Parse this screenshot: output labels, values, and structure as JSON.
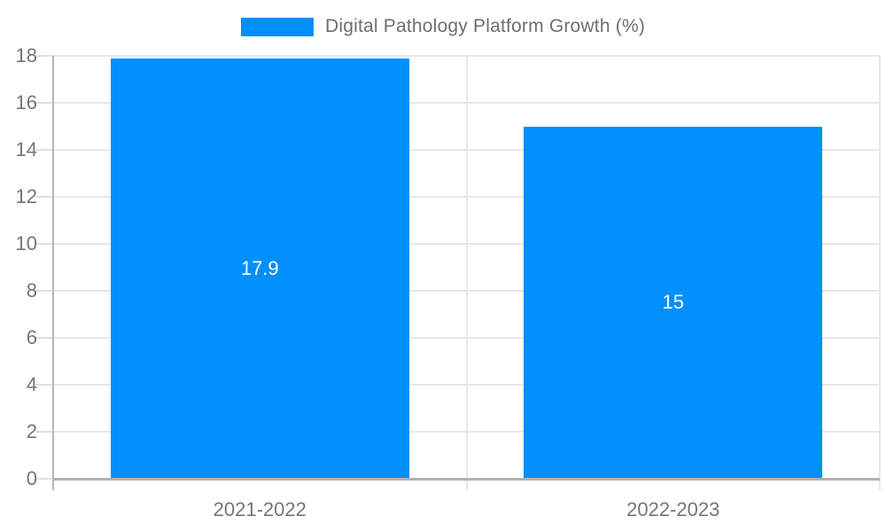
{
  "chart_data": {
    "type": "bar",
    "legend": {
      "label": "Digital Pathology Platform Growth (%)",
      "position": "top"
    },
    "categories": [
      "2021-2022",
      "2022-2023"
    ],
    "series": [
      {
        "name": "Digital Pathology Platform Growth (%)",
        "values": [
          17.9,
          15
        ]
      }
    ],
    "bar_labels": [
      "17.9",
      "15"
    ],
    "ylim": [
      0,
      18
    ],
    "yticks": [
      0,
      2,
      4,
      6,
      8,
      10,
      12,
      14,
      16,
      18
    ],
    "grid": true,
    "legend_position": "top",
    "colors": {
      "bar": "#008FFB",
      "grid": "#e7e7e7",
      "tick_mark": "#e0e0e0",
      "axis_line": "#b0b0b0",
      "tick_text": "#757575",
      "legend_text": "#6e6e6e",
      "bar_label_text": "#ffffff",
      "background": "#ffffff"
    }
  }
}
